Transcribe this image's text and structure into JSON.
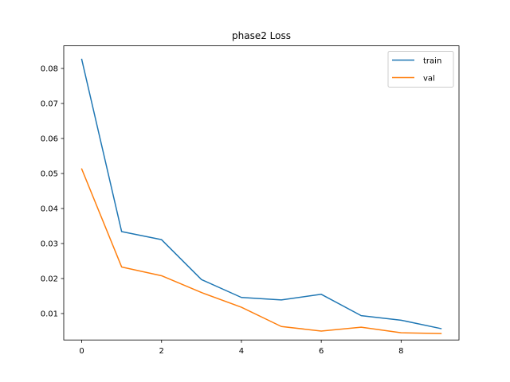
{
  "chart_data": {
    "type": "line",
    "title": "phase2 Loss",
    "xlabel": "",
    "ylabel": "",
    "x": [
      0,
      1,
      2,
      3,
      4,
      5,
      6,
      7,
      8,
      9
    ],
    "series": [
      {
        "name": "train",
        "color": "#1f77b4",
        "values": [
          0.0826,
          0.0334,
          0.0311,
          0.0197,
          0.0146,
          0.0139,
          0.0155,
          0.0094,
          0.0081,
          0.0057
        ]
      },
      {
        "name": "val",
        "color": "#ff7f0e",
        "values": [
          0.0513,
          0.0233,
          0.0208,
          0.016,
          0.0118,
          0.0063,
          0.005,
          0.0061,
          0.0045,
          0.0043
        ]
      }
    ],
    "xticks": [
      "0",
      "2",
      "4",
      "6",
      "8"
    ],
    "yticks": [
      "0.01",
      "0.02",
      "0.03",
      "0.04",
      "0.05",
      "0.06",
      "0.07",
      "0.08"
    ],
    "xlim": [
      -0.45,
      9.45
    ],
    "ylim": [
      0.00245,
      0.08646
    ],
    "grid": false,
    "legend_position": "upper right"
  }
}
